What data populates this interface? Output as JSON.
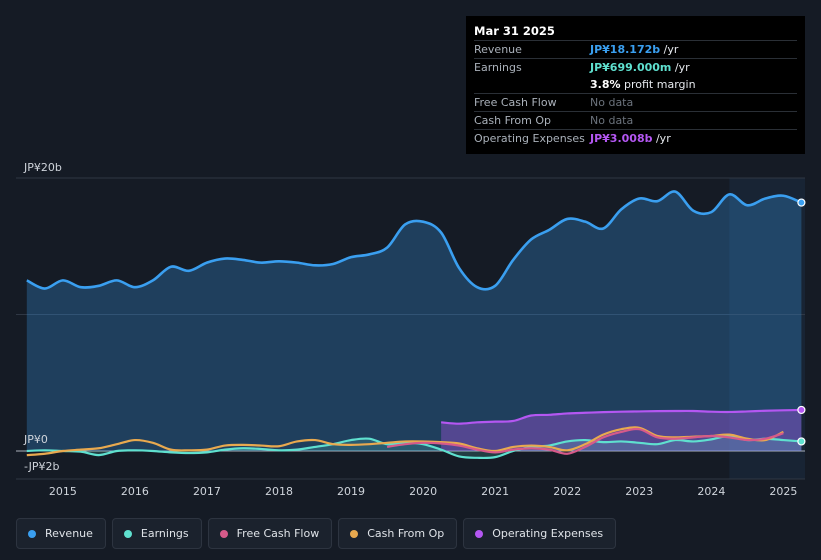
{
  "tooltip": {
    "date": "Mar 31 2025",
    "rows": {
      "revenue": {
        "label": "Revenue",
        "value": "JP¥18.172b",
        "unit": " /yr"
      },
      "earnings": {
        "label": "Earnings",
        "value": "JP¥699.000m",
        "unit": " /yr"
      },
      "margin": {
        "value": "3.8%",
        "unit": " profit margin"
      },
      "fcf": {
        "label": "Free Cash Flow",
        "value": "No data"
      },
      "cfo": {
        "label": "Cash From Op",
        "value": "No data"
      },
      "opex": {
        "label": "Operating Expenses",
        "value": "JP¥3.008b",
        "unit": " /yr"
      }
    }
  },
  "legend": [
    {
      "label": "Revenue",
      "color": "#3a9ff0"
    },
    {
      "label": "Earnings",
      "color": "#5fe0cf"
    },
    {
      "label": "Free Cash Flow",
      "color": "#d65a8a"
    },
    {
      "label": "Cash From Op",
      "color": "#e8a94f"
    },
    {
      "label": "Operating Expenses",
      "color": "#b457f2"
    }
  ],
  "chart_data": {
    "type": "line",
    "title": "",
    "y_unit": "JP¥",
    "ylim": [
      -2,
      20
    ],
    "y_ticks": [
      {
        "value": 20,
        "label": "JP¥20b"
      },
      {
        "value": 0,
        "label": "JP¥0"
      },
      {
        "value": -2,
        "label": "-JP¥2b"
      }
    ],
    "xlim": [
      2014.35,
      2025.3
    ],
    "x_ticks": [
      {
        "value": 2015,
        "label": "2015"
      },
      {
        "value": 2016,
        "label": "2016"
      },
      {
        "value": 2017,
        "label": "2017"
      },
      {
        "value": 2018,
        "label": "2018"
      },
      {
        "value": 2019,
        "label": "2019"
      },
      {
        "value": 2020,
        "label": "2020"
      },
      {
        "value": 2021,
        "label": "2021"
      },
      {
        "value": 2022,
        "label": "2022"
      },
      {
        "value": 2023,
        "label": "2023"
      },
      {
        "value": 2024,
        "label": "2024"
      },
      {
        "value": 2025,
        "label": "2025"
      }
    ],
    "highlight_from": 2024.25,
    "series": [
      {
        "name": "Revenue",
        "color": "#3a9ff0",
        "fill": true,
        "x": [
          2014.5,
          2014.75,
          2015.0,
          2015.25,
          2015.5,
          2015.75,
          2016.0,
          2016.25,
          2016.5,
          2016.75,
          2017.0,
          2017.25,
          2017.5,
          2017.75,
          2018.0,
          2018.25,
          2018.5,
          2018.75,
          2019.0,
          2019.25,
          2019.5,
          2019.75,
          2020.0,
          2020.25,
          2020.5,
          2020.75,
          2021.0,
          2021.25,
          2021.5,
          2021.75,
          2022.0,
          2022.25,
          2022.5,
          2022.75,
          2023.0,
          2023.25,
          2023.5,
          2023.75,
          2024.0,
          2024.25,
          2024.5,
          2024.75,
          2025.0,
          2025.25
        ],
        "values": [
          12.5,
          11.9,
          12.5,
          12.0,
          12.1,
          12.5,
          12.0,
          12.5,
          13.5,
          13.2,
          13.8,
          14.1,
          14.0,
          13.8,
          13.9,
          13.8,
          13.6,
          13.7,
          14.2,
          14.4,
          14.9,
          16.6,
          16.8,
          16.0,
          13.4,
          12.0,
          12.1,
          14.0,
          15.5,
          16.2,
          17.0,
          16.8,
          16.3,
          17.7,
          18.5,
          18.3,
          19.0,
          17.6,
          17.5,
          18.8,
          18.0,
          18.5,
          18.7,
          18.2
        ]
      },
      {
        "name": "Operating Expenses",
        "color": "#b457f2",
        "fill": true,
        "x": [
          2020.25,
          2020.5,
          2020.75,
          2021.0,
          2021.25,
          2021.5,
          2021.75,
          2022.0,
          2022.25,
          2022.5,
          2022.75,
          2023.0,
          2023.25,
          2023.5,
          2023.75,
          2024.0,
          2024.25,
          2024.5,
          2024.75,
          2025.0,
          2025.25
        ],
        "values": [
          2.1,
          2.0,
          2.1,
          2.15,
          2.2,
          2.6,
          2.65,
          2.75,
          2.8,
          2.85,
          2.88,
          2.9,
          2.92,
          2.93,
          2.93,
          2.88,
          2.86,
          2.9,
          2.95,
          2.98,
          3.008
        ]
      },
      {
        "name": "Earnings",
        "color": "#5fe0cf",
        "fill": true,
        "x": [
          2014.5,
          2014.75,
          2015.0,
          2015.25,
          2015.5,
          2015.75,
          2016.0,
          2016.25,
          2016.5,
          2016.75,
          2017.0,
          2017.25,
          2017.5,
          2017.75,
          2018.0,
          2018.25,
          2018.5,
          2018.75,
          2019.0,
          2019.25,
          2019.5,
          2019.75,
          2020.0,
          2020.25,
          2020.5,
          2020.75,
          2021.0,
          2021.25,
          2021.5,
          2021.75,
          2022.0,
          2022.25,
          2022.5,
          2022.75,
          2023.0,
          2023.25,
          2023.5,
          2023.75,
          2024.0,
          2024.25,
          2024.5,
          2024.75,
          2025.0,
          2025.25
        ],
        "values": [
          0.0,
          0.05,
          0.0,
          -0.05,
          -0.3,
          0.0,
          0.05,
          0.0,
          -0.1,
          -0.15,
          -0.1,
          0.1,
          0.2,
          0.15,
          0.05,
          0.1,
          0.3,
          0.5,
          0.8,
          0.9,
          0.5,
          0.6,
          0.5,
          0.1,
          -0.4,
          -0.5,
          -0.45,
          0.0,
          0.3,
          0.4,
          0.7,
          0.8,
          0.65,
          0.7,
          0.6,
          0.5,
          0.8,
          0.7,
          0.85,
          1.1,
          0.8,
          0.9,
          0.8,
          0.699
        ]
      },
      {
        "name": "Cash From Op",
        "color": "#e8a94f",
        "fill": false,
        "x": [
          2014.5,
          2014.75,
          2015.0,
          2015.25,
          2015.5,
          2015.75,
          2016.0,
          2016.25,
          2016.5,
          2016.75,
          2017.0,
          2017.25,
          2017.5,
          2017.75,
          2018.0,
          2018.25,
          2018.5,
          2018.75,
          2019.0,
          2019.25,
          2019.5,
          2019.75,
          2020.0,
          2020.25,
          2020.5,
          2020.75,
          2021.0,
          2021.25,
          2021.5,
          2021.75,
          2022.0,
          2022.25,
          2022.5,
          2022.75,
          2023.0,
          2023.25,
          2023.5,
          2023.75,
          2024.0,
          2024.25,
          2024.5,
          2024.75,
          2025.0
        ],
        "values": [
          -0.3,
          -0.2,
          0.0,
          0.1,
          0.2,
          0.5,
          0.8,
          0.6,
          0.1,
          0.05,
          0.1,
          0.4,
          0.45,
          0.4,
          0.35,
          0.7,
          0.8,
          0.5,
          0.45,
          0.5,
          0.6,
          0.7,
          0.7,
          0.65,
          0.55,
          0.2,
          0.0,
          0.3,
          0.4,
          0.3,
          0.05,
          0.5,
          1.2,
          1.6,
          1.7,
          1.1,
          1.0,
          1.05,
          1.1,
          1.2,
          0.9,
          0.8,
          1.4
        ]
      },
      {
        "name": "Free Cash Flow",
        "color": "#d65a8a",
        "fill": false,
        "x": [
          2019.5,
          2019.75,
          2020.0,
          2020.25,
          2020.5,
          2020.75,
          2021.0,
          2021.25,
          2021.5,
          2021.75,
          2022.0,
          2022.25,
          2022.5,
          2022.75,
          2023.0,
          2023.25,
          2023.5,
          2023.75,
          2024.0,
          2024.25,
          2024.5,
          2024.75,
          2025.0
        ],
        "values": [
          0.3,
          0.5,
          0.6,
          0.55,
          0.4,
          0.1,
          -0.1,
          0.1,
          0.2,
          0.1,
          -0.2,
          0.3,
          1.0,
          1.4,
          1.6,
          1.0,
          0.9,
          1.0,
          1.1,
          1.0,
          0.8,
          0.9,
          1.3
        ]
      }
    ]
  }
}
